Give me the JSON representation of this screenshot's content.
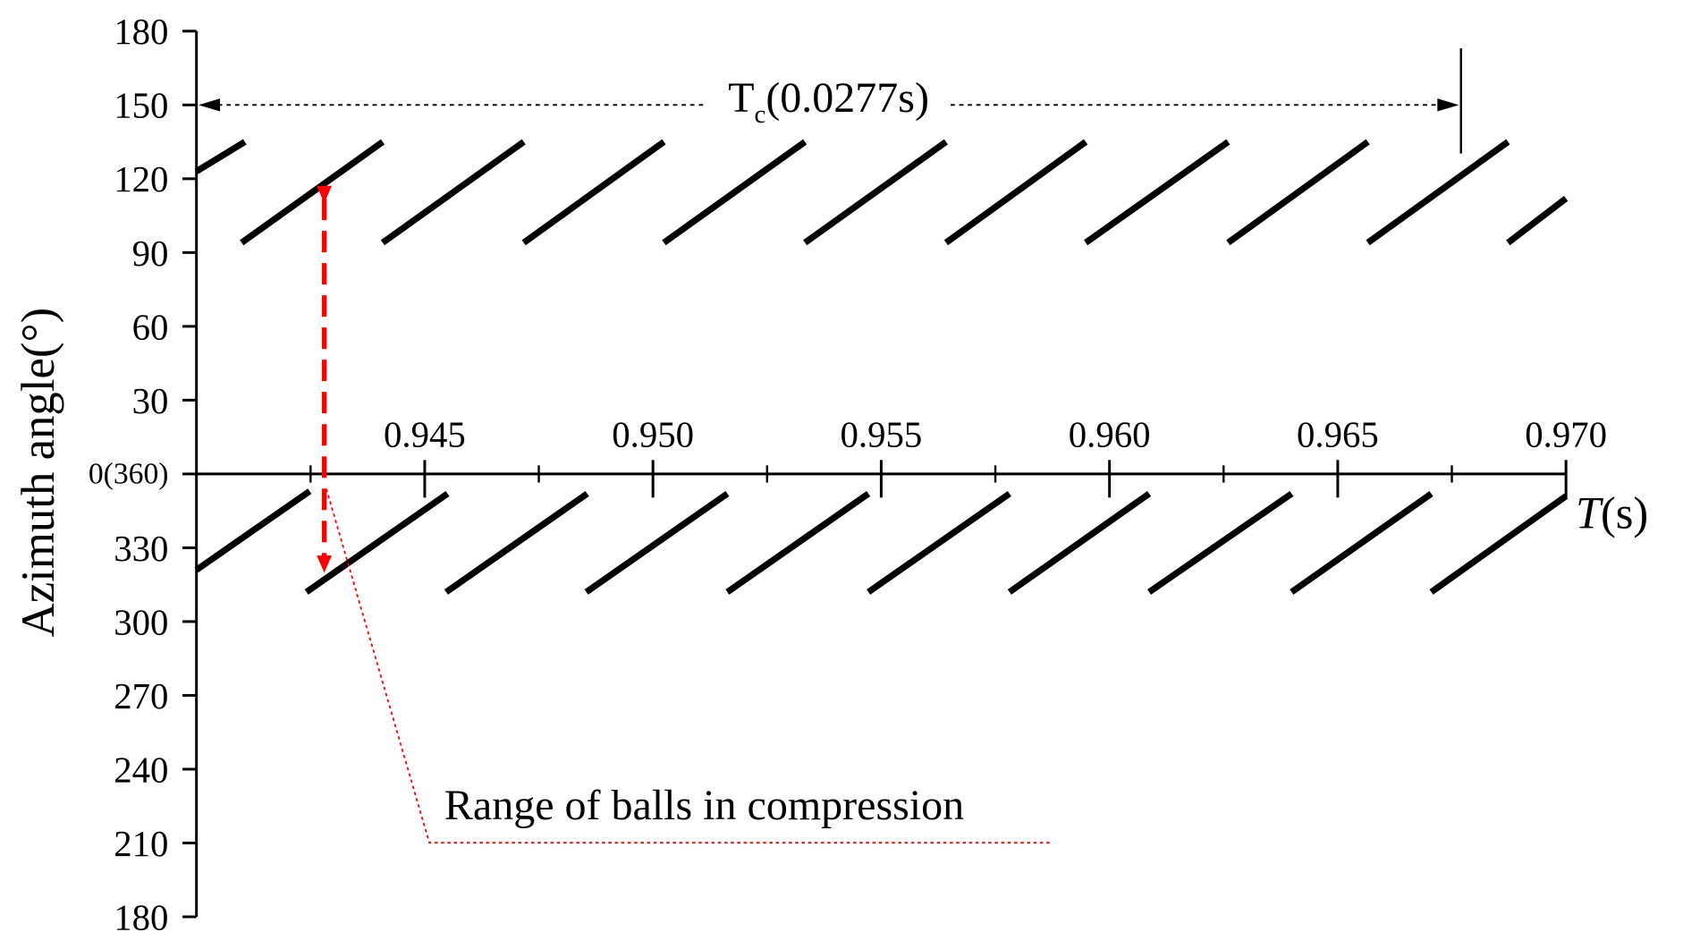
{
  "chart_data": {
    "type": "segments",
    "y_label": "Azimuth angle(°)",
    "x_label_var": "T",
    "x_label_unit": "(s)",
    "color": "#000000",
    "xlim": [
      0.94,
      0.97
    ],
    "xticks": [
      0.945,
      {
        "value": 0.95,
        "label": "0.950"
      },
      0.955,
      {
        "value": 0.96,
        "label": "0.960"
      },
      0.965,
      {
        "value": 0.97,
        "label": "0.970"
      }
    ],
    "xminorticks": [
      0.9425,
      0.9475,
      0.9525,
      0.9575,
      0.9625,
      0.9675
    ],
    "ylim": [
      -180,
      180
    ],
    "yticks": [
      180,
      150,
      120,
      90,
      60,
      30,
      {
        "value": 0,
        "label": "0(360)"
      },
      {
        "value": -30,
        "label": "330"
      },
      {
        "value": -60,
        "label": "300"
      },
      {
        "value": -90,
        "label": "270"
      },
      {
        "value": -120,
        "label": "240"
      },
      {
        "value": -150,
        "label": "210"
      },
      {
        "value": -180,
        "label": "180"
      }
    ],
    "series": [
      {
        "x": [
          0.94,
          0.94106
        ],
        "values": [
          123,
          135
        ]
      },
      {
        "x": [
          0.94099,
          0.94408
        ],
        "values": [
          94,
          135
        ]
      },
      {
        "x": [
          0.94408,
          0.94717
        ],
        "values": [
          94,
          135
        ]
      },
      {
        "x": [
          0.94717,
          0.95024
        ],
        "values": [
          94,
          135
        ]
      },
      {
        "x": [
          0.95024,
          0.95333
        ],
        "values": [
          94,
          135
        ]
      },
      {
        "x": [
          0.95333,
          0.95642
        ],
        "values": [
          94,
          135
        ]
      },
      {
        "x": [
          0.95642,
          0.95948
        ],
        "values": [
          94,
          135
        ]
      },
      {
        "x": [
          0.95948,
          0.9626
        ],
        "values": [
          94,
          135
        ]
      },
      {
        "x": [
          0.9626,
          0.96566
        ],
        "values": [
          94,
          135
        ]
      },
      {
        "x": [
          0.96566,
          0.96873
        ],
        "values": [
          94,
          135
        ]
      },
      {
        "x": [
          0.96873,
          0.97
        ],
        "values": [
          94,
          112
        ]
      },
      {
        "x": [
          0.94,
          0.94248
        ],
        "values": [
          -39,
          -7
        ]
      },
      {
        "x": [
          0.94241,
          0.9455
        ],
        "values": [
          -48,
          -8
        ]
      },
      {
        "x": [
          0.94547,
          0.94856
        ],
        "values": [
          -48,
          -8
        ]
      },
      {
        "x": [
          0.94854,
          0.95163
        ],
        "values": [
          -48,
          -8
        ]
      },
      {
        "x": [
          0.95163,
          0.95472
        ],
        "values": [
          -48,
          -8
        ]
      },
      {
        "x": [
          0.95472,
          0.95781
        ],
        "values": [
          -48,
          -8
        ]
      },
      {
        "x": [
          0.95781,
          0.96087
        ],
        "values": [
          -48,
          -8
        ]
      },
      {
        "x": [
          0.96087,
          0.96399
        ],
        "values": [
          -48,
          -8
        ]
      },
      {
        "x": [
          0.96399,
          0.96705
        ],
        "values": [
          -48,
          -8
        ]
      },
      {
        "x": [
          0.96705,
          0.97
        ],
        "values": [
          -48,
          -9
        ]
      }
    ],
    "period_arrow": {
      "x_start": 0.94,
      "x_end": 0.9677,
      "y": 150,
      "text": "T",
      "subscript": "c",
      "text_after": "(0.0277s)"
    },
    "range_arrow": {
      "x": 0.9428,
      "y_top": 118,
      "y_bottom": -41,
      "color": "#ff0000",
      "label": "Range of balls in compression"
    }
  }
}
